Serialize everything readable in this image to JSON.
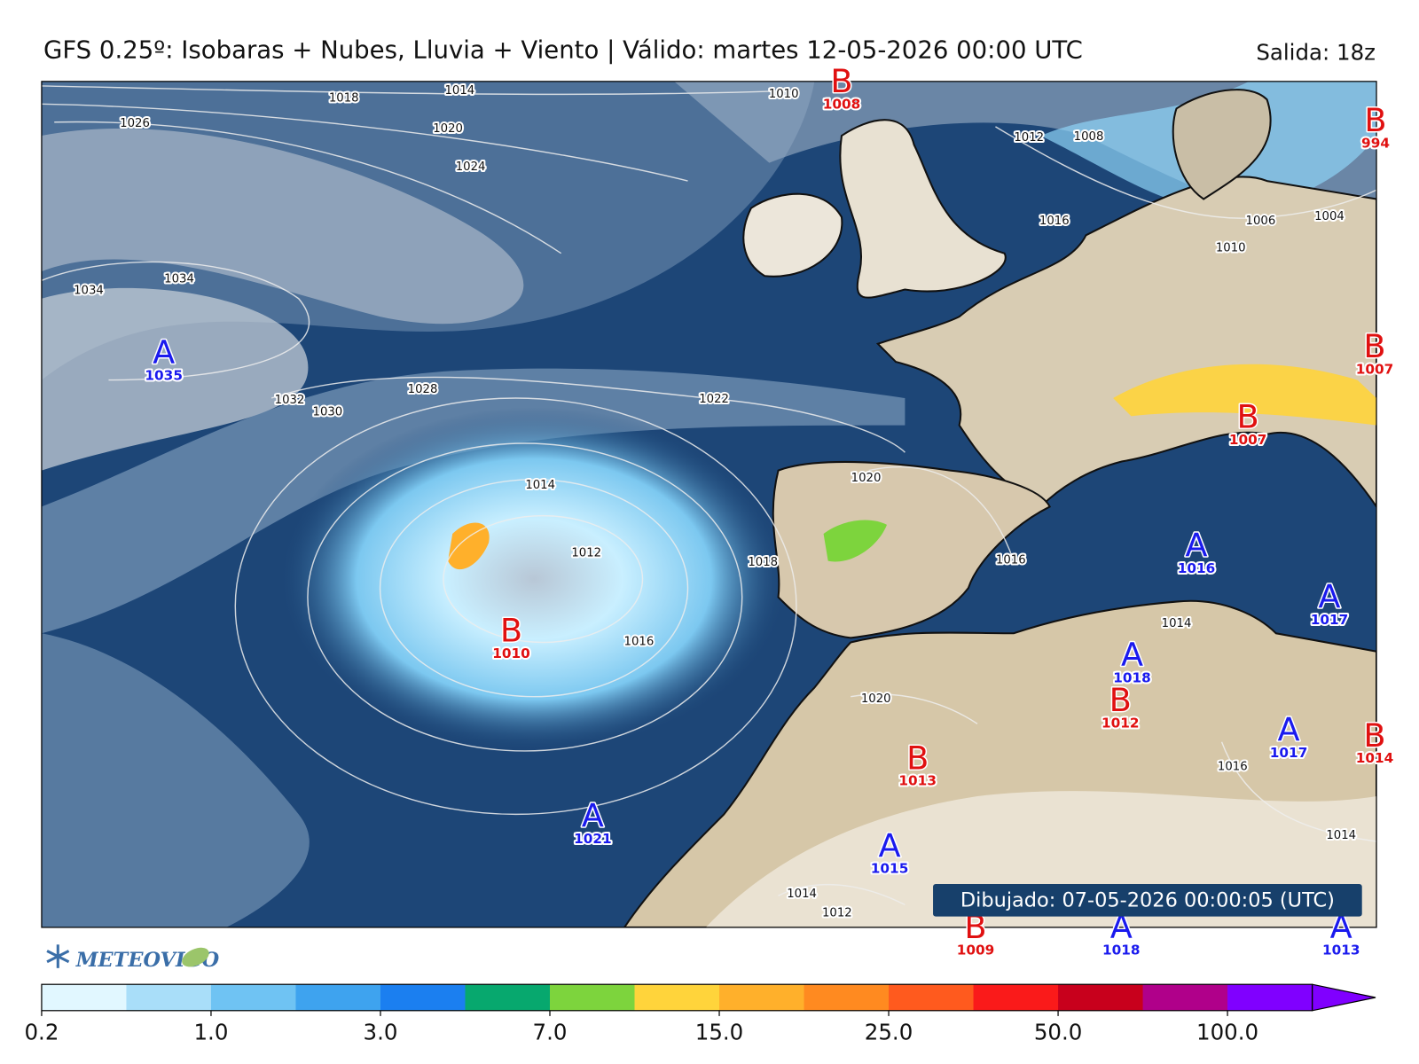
{
  "title": "GFS 0.25º: Isobaras + Nubes, Lluvia + Viento | Válido: martes 12-05-2026 00:00 UTC",
  "run": "Salida: 18z",
  "drawn": "Dibujado: 07-05-2026 00:00:05 (UTC)",
  "logo": "METEOVIGO",
  "pressure_centers": [
    {
      "kind": "A",
      "value": 1035,
      "color": "#1a1aee"
    },
    {
      "kind": "B",
      "value": 1008,
      "color": "#e01010"
    },
    {
      "kind": "B",
      "value": 994,
      "color": "#e01010"
    },
    {
      "kind": "B",
      "value": 1007,
      "color": "#e01010"
    },
    {
      "kind": "B",
      "value": 1007,
      "color": "#e01010"
    },
    {
      "kind": "A",
      "value": 1016,
      "color": "#1a1aee"
    },
    {
      "kind": "A",
      "value": 1017,
      "color": "#1a1aee"
    },
    {
      "kind": "B",
      "value": 1010,
      "color": "#e01010"
    },
    {
      "kind": "A",
      "value": 1018,
      "color": "#1a1aee"
    },
    {
      "kind": "B",
      "value": 1012,
      "color": "#e01010"
    },
    {
      "kind": "A",
      "value": 1017,
      "color": "#1a1aee"
    },
    {
      "kind": "B",
      "value": 1014,
      "color": "#e01010"
    },
    {
      "kind": "B",
      "value": 1013,
      "color": "#e01010"
    },
    {
      "kind": "A",
      "value": 1021,
      "color": "#1a1aee"
    },
    {
      "kind": "A",
      "value": 1015,
      "color": "#1a1aee"
    },
    {
      "kind": "B",
      "value": 1009,
      "color": "#e01010"
    },
    {
      "kind": "A",
      "value": 1018,
      "color": "#1a1aee"
    },
    {
      "kind": "A",
      "value": 1013,
      "color": "#1a1aee"
    }
  ],
  "isobar_labels": [
    1018,
    1014,
    1010,
    1026,
    1020,
    1024,
    1012,
    1008,
    1016,
    1006,
    1004,
    1010,
    1034,
    1034,
    1032,
    1030,
    1028,
    1022,
    1020,
    1014,
    1012,
    1018,
    1016,
    1016,
    1014,
    1020,
    1016,
    1014,
    1014,
    1012
  ],
  "colorbar": {
    "colors": [
      "#e1f7ff",
      "#a9def9",
      "#6fc3f3",
      "#3ea3ef",
      "#1b7ff0",
      "#07a86e",
      "#7dd43d",
      "#ffd43b",
      "#ffb02b",
      "#ff8a20",
      "#ff5a1e",
      "#fa1a1a",
      "#c8001c",
      "#b0008a",
      "#8000ff"
    ],
    "ticks": [
      0.2,
      {
        "value": 1,
        "label": "1.0"
      },
      {
        "value": 3,
        "label": "3.0"
      },
      {
        "value": 7,
        "label": "7.0"
      },
      {
        "value": 15,
        "label": "15.0"
      },
      {
        "value": 25,
        "label": "25.0"
      },
      {
        "value": 50,
        "label": "50.0"
      },
      {
        "value": 100,
        "label": "100.0"
      }
    ]
  }
}
